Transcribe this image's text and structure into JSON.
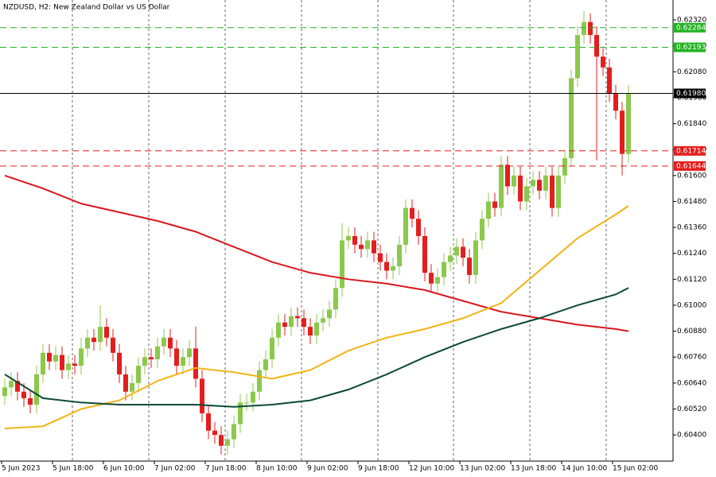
{
  "chart_data": {
    "type": "candlestick",
    "title": "NZDUSD, H2:  New Zealand Dollar vs US Dollar",
    "up_color": "#8cc84b",
    "down_color": "#e31e1e",
    "ylim": [
      0.60279,
      0.62412
    ],
    "yticks": [
      {
        "value": 0.6232,
        "label": "0.62320"
      },
      {
        "value": 0.622,
        "label": "0.62200"
      },
      {
        "value": 0.6208,
        "label": "0.62080"
      },
      {
        "value": 0.6196,
        "label": "0.61960"
      },
      {
        "value": 0.6184,
        "label": "0.61840"
      },
      {
        "value": 0.6172,
        "label": "0.61720"
      },
      {
        "value": 0.616,
        "label": "0.61600"
      },
      {
        "value": 0.6148,
        "label": "0.61480"
      },
      {
        "value": 0.6136,
        "label": "0.61360"
      },
      {
        "value": 0.6124,
        "label": "0.61240"
      },
      {
        "value": 0.6112,
        "label": "0.61120"
      },
      {
        "value": 0.61,
        "label": "0.61000"
      },
      {
        "value": 0.6088,
        "label": "0.60880"
      },
      {
        "value": 0.6076,
        "label": "0.60760"
      },
      {
        "value": 0.6064,
        "label": "0.60640"
      },
      {
        "value": 0.6052,
        "label": "0.60520"
      },
      {
        "value": 0.604,
        "label": "0.60400"
      }
    ],
    "xticks": [
      {
        "value": 0,
        "label": "5 Jun 2023"
      },
      {
        "value": 8,
        "label": "5 Jun 18:00"
      },
      {
        "value": 16,
        "label": "6 Jun 10:00"
      },
      {
        "value": 24,
        "label": "7 Jun 02:00"
      },
      {
        "value": 32,
        "label": "7 Jun 18:00"
      },
      {
        "value": 40,
        "label": "8 Jun 10:00"
      },
      {
        "value": 48,
        "label": "9 Jun 02:00"
      },
      {
        "value": 56,
        "label": "9 Jun 18:00"
      },
      {
        "value": 64,
        "label": "12 Jun 10:00"
      },
      {
        "value": 72,
        "label": "13 Jun 02:00"
      },
      {
        "value": 80,
        "label": "13 Jun 18:00"
      },
      {
        "value": 88,
        "label": "14 Jun 10:00"
      },
      {
        "value": 96,
        "label": "15 Jun 02:00"
      }
    ],
    "open": [
      0.6058,
      0.6062,
      0.6065,
      0.606,
      0.6057,
      0.6054,
      0.6068,
      0.6078,
      0.6074,
      0.6077,
      0.607,
      0.6073,
      0.6072,
      0.608,
      0.6085,
      0.6083,
      0.609,
      0.6085,
      0.6078,
      0.6068,
      0.606,
      0.6064,
      0.6072,
      0.6076,
      0.6075,
      0.6081,
      0.6085,
      0.608,
      0.6072,
      0.6076,
      0.608,
      0.6066,
      0.605,
      0.6042,
      0.604,
      0.6035,
      0.6038,
      0.6045,
      0.6055,
      0.6055,
      0.606,
      0.607,
      0.6075,
      0.6085,
      0.6092,
      0.609,
      0.6095,
      0.6094,
      0.609,
      0.6086,
      0.6092,
      0.6094,
      0.6098,
      0.6108,
      0.613,
      0.6132,
      0.6128,
      0.6126,
      0.613,
      0.6124,
      0.612,
      0.6116,
      0.6118,
      0.6128,
      0.6145,
      0.614,
      0.6132,
      0.6115,
      0.611,
      0.6113,
      0.612,
      0.6123,
      0.6127,
      0.6122,
      0.6114,
      0.613,
      0.614,
      0.6148,
      0.6145,
      0.6165,
      0.6155,
      0.616,
      0.6148,
      0.6155,
      0.6158,
      0.6153,
      0.616,
      0.6145,
      0.616,
      0.6168,
      0.6205,
      0.6225,
      0.6231,
      0.6225,
      0.6215,
      0.621,
      0.6198,
      0.619,
      0.617
    ],
    "high": [
      0.6066,
      0.6069,
      0.6069,
      0.6064,
      0.6061,
      0.6072,
      0.6082,
      0.6082,
      0.6081,
      0.6081,
      0.6077,
      0.6077,
      0.6085,
      0.6089,
      0.6089,
      0.61,
      0.6094,
      0.6089,
      0.6082,
      0.6072,
      0.6068,
      0.6076,
      0.608,
      0.608,
      0.6085,
      0.6089,
      0.6089,
      0.6084,
      0.608,
      0.6084,
      0.609,
      0.607,
      0.6054,
      0.6046,
      0.6044,
      0.6042,
      0.6049,
      0.6059,
      0.6059,
      0.6064,
      0.6074,
      0.6079,
      0.6089,
      0.6096,
      0.6096,
      0.6099,
      0.6099,
      0.6098,
      0.6094,
      0.6096,
      0.6098,
      0.6102,
      0.6112,
      0.6138,
      0.6136,
      0.6136,
      0.6132,
      0.6134,
      0.6134,
      0.6128,
      0.6124,
      0.6122,
      0.6132,
      0.6149,
      0.6149,
      0.6144,
      0.6136,
      0.6119,
      0.6117,
      0.6124,
      0.6127,
      0.6131,
      0.6131,
      0.6126,
      0.6134,
      0.6144,
      0.6152,
      0.6152,
      0.6169,
      0.6169,
      0.6164,
      0.6164,
      0.6159,
      0.6162,
      0.6162,
      0.6164,
      0.6164,
      0.6164,
      0.6172,
      0.6209,
      0.6229,
      0.6236,
      0.6235,
      0.6229,
      0.6219,
      0.6214,
      0.6202,
      0.6194,
      0.6202
    ],
    "low": [
      0.6054,
      0.6058,
      0.6056,
      0.6053,
      0.605,
      0.605,
      0.6064,
      0.607,
      0.607,
      0.6066,
      0.6066,
      0.6068,
      0.6068,
      0.6076,
      0.6079,
      0.6079,
      0.6081,
      0.6074,
      0.6064,
      0.6056,
      0.6056,
      0.606,
      0.6068,
      0.6071,
      0.6071,
      0.6077,
      0.6076,
      0.6068,
      0.6068,
      0.6072,
      0.6062,
      0.6046,
      0.6038,
      0.6036,
      0.6031,
      0.6031,
      0.6034,
      0.6041,
      0.6051,
      0.6051,
      0.6056,
      0.6066,
      0.6071,
      0.6081,
      0.6086,
      0.6086,
      0.609,
      0.6086,
      0.6082,
      0.6082,
      0.6088,
      0.609,
      0.6094,
      0.6104,
      0.6126,
      0.6124,
      0.6122,
      0.6122,
      0.612,
      0.6116,
      0.6112,
      0.6112,
      0.6114,
      0.6124,
      0.6136,
      0.6128,
      0.6111,
      0.6106,
      0.6106,
      0.6109,
      0.6116,
      0.6119,
      0.6118,
      0.611,
      0.611,
      0.6126,
      0.6136,
      0.6141,
      0.6141,
      0.6151,
      0.6151,
      0.6144,
      0.6144,
      0.6151,
      0.6149,
      0.6149,
      0.6141,
      0.6141,
      0.6156,
      0.6164,
      0.6201,
      0.6221,
      0.6221,
      0.6167,
      0.6206,
      0.6194,
      0.6186,
      0.616,
      0.6166
    ],
    "close": [
      0.6062,
      0.6065,
      0.606,
      0.6057,
      0.6054,
      0.6068,
      0.6078,
      0.6074,
      0.6077,
      0.607,
      0.6073,
      0.6072,
      0.608,
      0.6085,
      0.6083,
      0.609,
      0.6085,
      0.6078,
      0.6068,
      0.606,
      0.6064,
      0.6072,
      0.6076,
      0.6075,
      0.6081,
      0.6085,
      0.608,
      0.6072,
      0.6076,
      0.608,
      0.6066,
      0.605,
      0.6042,
      0.604,
      0.6035,
      0.6038,
      0.6045,
      0.6055,
      0.6055,
      0.606,
      0.607,
      0.6075,
      0.6085,
      0.6092,
      0.609,
      0.6095,
      0.6094,
      0.609,
      0.6086,
      0.6092,
      0.6094,
      0.6098,
      0.6108,
      0.613,
      0.6132,
      0.6128,
      0.6126,
      0.613,
      0.6124,
      0.612,
      0.6116,
      0.6118,
      0.6128,
      0.6145,
      0.614,
      0.6132,
      0.6115,
      0.611,
      0.6113,
      0.612,
      0.6123,
      0.6127,
      0.6122,
      0.6114,
      0.613,
      0.614,
      0.6148,
      0.6145,
      0.6165,
      0.6155,
      0.616,
      0.6148,
      0.6155,
      0.6158,
      0.6153,
      0.616,
      0.6145,
      0.616,
      0.6168,
      0.6205,
      0.6225,
      0.6231,
      0.6225,
      0.6215,
      0.621,
      0.6198,
      0.619,
      0.617,
      0.6198
    ],
    "overlays": [
      {
        "color": "#d9161c",
        "x": [
          0,
          6,
          12,
          18,
          24,
          30,
          36,
          42,
          48,
          54,
          60,
          66,
          72,
          78,
          84,
          90,
          96,
          98
        ],
        "values": [
          0.616,
          0.6154,
          0.6147,
          0.6143,
          0.6139,
          0.6134,
          0.6127,
          0.612,
          0.6115,
          0.6112,
          0.611,
          0.6107,
          0.6102,
          0.6097,
          0.6094,
          0.6091,
          0.6089,
          0.6088
        ]
      },
      {
        "color": "#f2b416",
        "x": [
          0,
          6,
          12,
          18,
          24,
          30,
          36,
          42,
          48,
          54,
          60,
          66,
          72,
          78,
          84,
          90,
          96,
          98
        ],
        "values": [
          0.6043,
          0.6044,
          0.6052,
          0.6056,
          0.6065,
          0.6071,
          0.6069,
          0.6066,
          0.607,
          0.6079,
          0.6085,
          0.6089,
          0.6094,
          0.6101,
          0.6116,
          0.6131,
          0.6142,
          0.6146
        ]
      },
      {
        "color": "#0c4a35",
        "x": [
          0,
          6,
          12,
          18,
          24,
          30,
          36,
          42,
          48,
          54,
          60,
          66,
          72,
          78,
          84,
          90,
          96,
          98
        ],
        "values": [
          0.6068,
          0.6057,
          0.6055,
          0.6054,
          0.6054,
          0.6054,
          0.6053,
          0.6054,
          0.6056,
          0.6061,
          0.6068,
          0.6076,
          0.6083,
          0.6089,
          0.6094,
          0.61,
          0.6105,
          0.6108
        ]
      }
    ],
    "levels": [
      {
        "value": 0.62284,
        "color": "#22b422",
        "style": "dashed"
      },
      {
        "value": 0.62193,
        "color": "#22b422",
        "style": "dashed"
      },
      {
        "value": 0.6198,
        "label": "0.61980",
        "color": "#000000",
        "style": "solid"
      },
      {
        "value": 0.61714,
        "color": "#e31e1e",
        "style": "dashed"
      },
      {
        "value": 0.61644,
        "color": "#e31e1e",
        "style": "dashed"
      }
    ]
  }
}
